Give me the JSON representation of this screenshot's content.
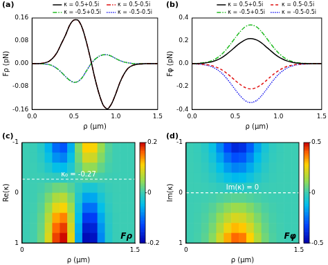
{
  "chart_data": [
    {
      "type": "line",
      "title": "(a)",
      "xlabel": "ρ (μm)",
      "ylabel": "Fρ (pN)",
      "xlim": [
        0,
        1.5
      ],
      "xticks": [
        {
          "value": 0,
          "label": "0.0"
        },
        0.5,
        {
          "value": 1,
          "label": "1.0"
        },
        1.5
      ],
      "ylim": [
        -0.16,
        0.16
      ],
      "yticks": [
        -0.16,
        -0.08,
        {
          "value": 0,
          "label": "0.00"
        },
        0.08,
        0.16
      ],
      "legend": "top",
      "x": [
        0,
        0.05,
        0.1,
        0.15,
        0.2,
        0.25,
        0.3,
        0.35,
        0.4,
        0.45,
        0.5,
        0.55,
        0.6,
        0.65,
        0.7,
        0.75,
        0.8,
        0.85,
        0.9,
        0.95,
        1,
        1.05,
        1.1,
        1.15,
        1.2,
        1.25,
        1.3,
        1.35,
        1.4,
        1.45,
        1.5
      ],
      "series": [
        {
          "name": "κ = 0.5+0.5i",
          "color": "#000000",
          "line_style": "solid",
          "values": [
            0,
            0,
            0.001,
            0.003,
            0.008,
            0.02,
            0.04,
            0.07,
            0.1,
            0.135,
            0.153,
            0.152,
            0.125,
            0.075,
            0.015,
            -0.05,
            -0.105,
            -0.145,
            -0.158,
            -0.14,
            -0.105,
            -0.065,
            -0.035,
            -0.015,
            -0.006,
            -0.002,
            -0.001,
            0,
            0,
            0,
            0
          ]
        },
        {
          "name": "κ = 0.5-0.5i",
          "color": "#e01010",
          "line_style": "dashdot",
          "values": [
            0,
            0,
            0.001,
            0.003,
            0.008,
            0.02,
            0.04,
            0.07,
            0.1,
            0.135,
            0.153,
            0.152,
            0.125,
            0.075,
            0.015,
            -0.05,
            -0.105,
            -0.145,
            -0.158,
            -0.14,
            -0.105,
            -0.065,
            -0.035,
            -0.015,
            -0.006,
            -0.002,
            -0.001,
            0,
            0,
            0,
            0
          ]
        },
        {
          "name": "κ = -0.5+0.5i",
          "color": "#22bb22",
          "line_style": "dashdot",
          "values": [
            0,
            0,
            0,
            -0.001,
            -0.003,
            -0.008,
            -0.017,
            -0.03,
            -0.045,
            -0.058,
            -0.065,
            -0.062,
            -0.048,
            -0.025,
            -0.002,
            0.015,
            0.026,
            0.031,
            0.031,
            0.026,
            0.018,
            0.011,
            0.006,
            0.003,
            0.001,
            0,
            0,
            0,
            0,
            0,
            0
          ]
        },
        {
          "name": "κ = -0.5-0.5i",
          "color": "#1a1aee",
          "line_style": "dotted",
          "values": [
            0,
            0,
            0,
            -0.001,
            -0.003,
            -0.008,
            -0.017,
            -0.03,
            -0.045,
            -0.058,
            -0.065,
            -0.062,
            -0.048,
            -0.025,
            -0.002,
            0.015,
            0.026,
            0.031,
            0.031,
            0.026,
            0.018,
            0.011,
            0.006,
            0.003,
            0.001,
            0,
            0,
            0,
            0,
            0,
            0
          ]
        }
      ]
    },
    {
      "type": "line",
      "title": "(b)",
      "xlabel": "ρ (μm)",
      "ylabel": "Fφ (pN)",
      "xlim": [
        0,
        1.5
      ],
      "xticks": [
        {
          "value": 0,
          "label": "0.0"
        },
        0.5,
        {
          "value": 1,
          "label": "1.0"
        },
        1.5
      ],
      "ylim": [
        -0.4,
        0.4
      ],
      "yticks": [
        -0.4,
        -0.2,
        {
          "value": 0,
          "label": "0.0"
        },
        0.2,
        0.4
      ],
      "legend": "top",
      "x": [
        0,
        0.05,
        0.1,
        0.15,
        0.2,
        0.25,
        0.3,
        0.35,
        0.4,
        0.45,
        0.5,
        0.55,
        0.6,
        0.65,
        0.7,
        0.75,
        0.8,
        0.85,
        0.9,
        0.95,
        1,
        1.05,
        1.1,
        1.15,
        1.2,
        1.25,
        1.3,
        1.35,
        1.4,
        1.45,
        1.5
      ],
      "series": [
        {
          "name": "κ = 0.5+0.5i",
          "color": "#000000",
          "line_style": "solid",
          "values": [
            0,
            0.001,
            0.003,
            0.007,
            0.012,
            0.022,
            0.036,
            0.056,
            0.083,
            0.114,
            0.147,
            0.178,
            0.203,
            0.218,
            0.219,
            0.207,
            0.184,
            0.153,
            0.12,
            0.088,
            0.061,
            0.04,
            0.024,
            0.014,
            0.007,
            0.004,
            0.002,
            0.001,
            0,
            0,
            0
          ]
        },
        {
          "name": "κ = 0.5-0.5i",
          "color": "#e01010",
          "line_style": "dashed",
          "values": [
            0,
            -0.001,
            -0.003,
            -0.007,
            -0.012,
            -0.022,
            -0.036,
            -0.056,
            -0.083,
            -0.114,
            -0.147,
            -0.178,
            -0.203,
            -0.218,
            -0.219,
            -0.207,
            -0.184,
            -0.153,
            -0.12,
            -0.088,
            -0.061,
            -0.04,
            -0.024,
            -0.014,
            -0.007,
            -0.004,
            -0.002,
            -0.001,
            0,
            0,
            0
          ]
        },
        {
          "name": "κ = -0.5+0.5i",
          "color": "#22bb22",
          "line_style": "dashdot",
          "values": [
            0,
            0.002,
            0.005,
            0.011,
            0.019,
            0.034,
            0.056,
            0.087,
            0.128,
            0.176,
            0.227,
            0.275,
            0.314,
            0.337,
            0.338,
            0.32,
            0.284,
            0.236,
            0.185,
            0.136,
            0.094,
            0.062,
            0.037,
            0.022,
            0.011,
            0.006,
            0.003,
            0.002,
            0,
            0,
            0
          ]
        },
        {
          "name": "κ = -0.5-0.5i",
          "color": "#1a1aee",
          "line_style": "dotted",
          "values": [
            0,
            -0.002,
            -0.005,
            -0.011,
            -0.019,
            -0.034,
            -0.056,
            -0.087,
            -0.128,
            -0.176,
            -0.227,
            -0.275,
            -0.314,
            -0.337,
            -0.338,
            -0.32,
            -0.284,
            -0.236,
            -0.185,
            -0.136,
            -0.094,
            -0.062,
            -0.037,
            -0.022,
            -0.011,
            -0.006,
            -0.003,
            -0.002,
            0,
            0,
            0
          ]
        }
      ]
    },
    {
      "type": "heatmap",
      "title": "(c)",
      "xlabel": "ρ (μm)",
      "ylabel": "Re(κ)",
      "label": "Fρ",
      "xlim": [
        0,
        1.5
      ],
      "xticks": [
        0,
        1.5
      ],
      "ylim": [
        1,
        -1
      ],
      "yticks": [
        -1,
        0,
        1
      ],
      "x": [
        0.05,
        0.15,
        0.25,
        0.35,
        0.45,
        0.55,
        0.65,
        0.75,
        0.85,
        0.95,
        1.05,
        1.15,
        1.25,
        1.35,
        1.45
      ],
      "y": [
        -0.9,
        -0.7,
        -0.5,
        -0.3,
        -0.1,
        0.1,
        0.3,
        0.5,
        0.7,
        0.9
      ],
      "z": [
        [
          0,
          -0.002,
          -0.016,
          -0.054,
          -0.104,
          -0.118,
          -0.058,
          0.038,
          0.113,
          0.108,
          0.05,
          0.012,
          0.001,
          0,
          0
        ],
        [
          0,
          -0.002,
          -0.012,
          -0.041,
          -0.078,
          -0.088,
          -0.043,
          0.029,
          0.085,
          0.081,
          0.038,
          0.009,
          0.001,
          0,
          0
        ],
        [
          0,
          -0.001,
          -0.007,
          -0.023,
          -0.044,
          -0.049,
          -0.024,
          0.016,
          0.047,
          0.045,
          0.021,
          0.005,
          0.001,
          0,
          0
        ],
        [
          0,
          0,
          -0.001,
          -0.005,
          -0.009,
          -0.01,
          -0.005,
          0.003,
          0.009,
          0.009,
          0.004,
          0.001,
          0,
          0,
          0
        ],
        [
          0,
          0.001,
          0.004,
          0.014,
          0.026,
          0.029,
          0.014,
          -0.01,
          -0.028,
          -0.027,
          -0.013,
          -0.003,
          0,
          0,
          0
        ],
        [
          0,
          0.001,
          0.009,
          0.032,
          0.061,
          0.069,
          0.034,
          -0.022,
          -0.066,
          -0.063,
          -0.029,
          -0.007,
          -0.001,
          0,
          0
        ],
        [
          0,
          0.002,
          0.014,
          0.05,
          0.096,
          0.108,
          0.053,
          -0.035,
          -0.103,
          -0.099,
          -0.046,
          -0.011,
          -0.001,
          0,
          0
        ],
        [
          0,
          0.003,
          0.02,
          0.068,
          0.131,
          0.147,
          0.072,
          -0.048,
          -0.141,
          -0.135,
          -0.063,
          -0.015,
          -0.002,
          0,
          0
        ],
        [
          0,
          0.004,
          0.023,
          0.081,
          0.157,
          0.176,
          0.086,
          -0.058,
          -0.169,
          -0.162,
          -0.076,
          -0.018,
          -0.002,
          0,
          0
        ],
        [
          0,
          0.004,
          0.026,
          0.09,
          0.174,
          0.196,
          0.096,
          -0.064,
          -0.188,
          -0.18,
          -0.084,
          -0.02,
          -0.002,
          0,
          0
        ]
      ],
      "colorbar": {
        "range": [
          -0.2,
          0.2
        ],
        "ticks": [
          -0.2,
          0,
          0.2
        ]
      },
      "annotations": [
        {
          "y": -0.27,
          "text": "κ₀ = -0.27"
        }
      ]
    },
    {
      "type": "heatmap",
      "title": "(d)",
      "xlabel": "ρ (μm)",
      "ylabel": "Im(κ)",
      "label": "Fφ",
      "xlim": [
        0,
        1.5
      ],
      "xticks": [
        0,
        1.5
      ],
      "ylim": [
        1,
        -1
      ],
      "yticks": [
        -1,
        0,
        1
      ],
      "x": [
        0.05,
        0.15,
        0.25,
        0.35,
        0.45,
        0.55,
        0.65,
        0.75,
        0.85,
        0.95,
        1.05,
        1.15,
        1.25,
        1.35,
        1.45
      ],
      "y": [
        -0.9,
        -0.7,
        -0.5,
        -0.3,
        -0.1,
        0.1,
        0.3,
        0.5,
        0.7,
        0.9
      ],
      "z": [
        [
          -0.002,
          -0.012,
          -0.04,
          -0.1,
          -0.208,
          -0.324,
          -0.396,
          -0.376,
          -0.28,
          -0.16,
          -0.072,
          -0.024,
          -0.008,
          0,
          0
        ],
        [
          -0.002,
          -0.009,
          -0.031,
          -0.078,
          -0.161,
          -0.251,
          -0.307,
          -0.291,
          -0.217,
          -0.124,
          -0.056,
          -0.019,
          -0.006,
          0,
          0
        ],
        [
          -0.001,
          -0.007,
          -0.022,
          -0.055,
          -0.114,
          -0.178,
          -0.218,
          -0.207,
          -0.154,
          -0.088,
          -0.04,
          -0.013,
          -0.004,
          0,
          0
        ],
        [
          -0.001,
          -0.004,
          -0.013,
          -0.033,
          -0.068,
          -0.105,
          -0.129,
          -0.122,
          -0.091,
          -0.052,
          -0.023,
          -0.008,
          -0.003,
          0,
          0
        ],
        [
          0,
          -0.001,
          -0.004,
          -0.01,
          -0.021,
          -0.032,
          -0.04,
          -0.038,
          -0.028,
          -0.016,
          -0.007,
          -0.002,
          -0.001,
          0,
          0
        ],
        [
          0,
          0.001,
          0.004,
          0.01,
          0.021,
          0.032,
          0.04,
          0.038,
          0.028,
          0.016,
          0.007,
          0.002,
          0.001,
          0,
          0
        ],
        [
          0.001,
          0.004,
          0.013,
          0.033,
          0.068,
          0.105,
          0.129,
          0.122,
          0.091,
          0.052,
          0.023,
          0.008,
          0.003,
          0,
          0
        ],
        [
          0.001,
          0.007,
          0.022,
          0.055,
          0.114,
          0.178,
          0.218,
          0.207,
          0.154,
          0.088,
          0.04,
          0.013,
          0.004,
          0,
          0
        ],
        [
          0.002,
          0.009,
          0.031,
          0.078,
          0.161,
          0.251,
          0.307,
          0.291,
          0.217,
          0.124,
          0.056,
          0.019,
          0.006,
          0,
          0
        ],
        [
          0.002,
          0.012,
          0.04,
          0.1,
          0.208,
          0.324,
          0.396,
          0.376,
          0.28,
          0.16,
          0.072,
          0.024,
          0.008,
          0,
          0
        ]
      ],
      "colorbar": {
        "range": [
          -0.5,
          0.5
        ],
        "ticks": [
          -0.5,
          0,
          0.5
        ]
      },
      "annotations": [
        {
          "y": 0,
          "text": "Im(κ) = 0"
        }
      ]
    }
  ]
}
